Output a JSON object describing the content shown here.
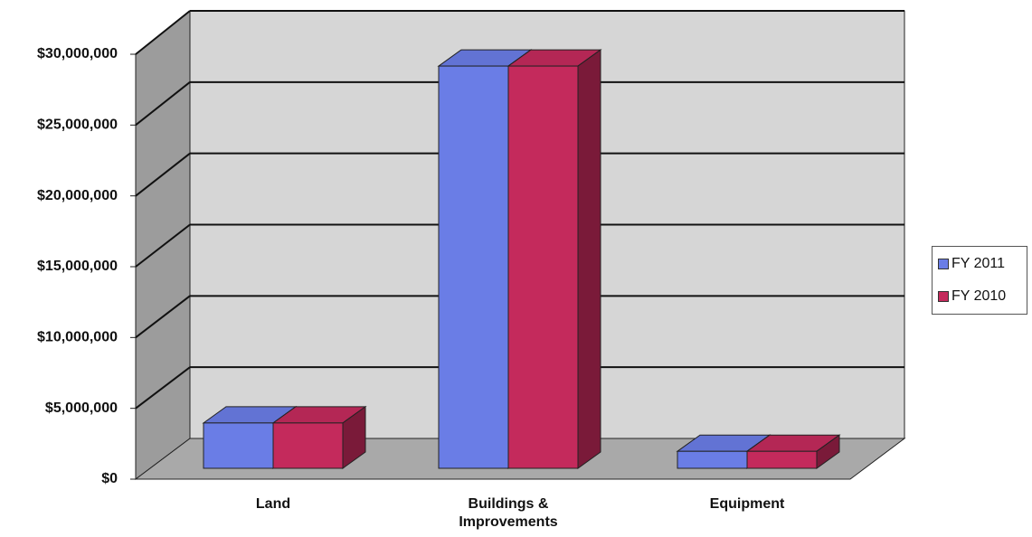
{
  "chart_data": {
    "type": "bar3d",
    "categories": [
      "Land",
      "Buildings & Improvements",
      "Equipment"
    ],
    "series": [
      {
        "name": "FY 2011",
        "color": "#6a7de6",
        "values": [
          3200000,
          28400000,
          1200000
        ]
      },
      {
        "name": "FY 2010",
        "color": "#c42a5c",
        "values": [
          3200000,
          28400000,
          1200000
        ]
      }
    ],
    "ylim": [
      0,
      30000000
    ],
    "yticks": [
      {
        "value": 0,
        "label": "$0"
      },
      {
        "value": 5000000,
        "label": "$5,000,000"
      },
      {
        "value": 10000000,
        "label": "$10,000,000"
      },
      {
        "value": 15000000,
        "label": "$15,000,000"
      },
      {
        "value": 20000000,
        "label": "$20,000,000"
      },
      {
        "value": 25000000,
        "label": "$25,000,000"
      },
      {
        "value": 30000000,
        "label": "$30,000,000"
      }
    ],
    "grid": true,
    "legend": "right"
  }
}
